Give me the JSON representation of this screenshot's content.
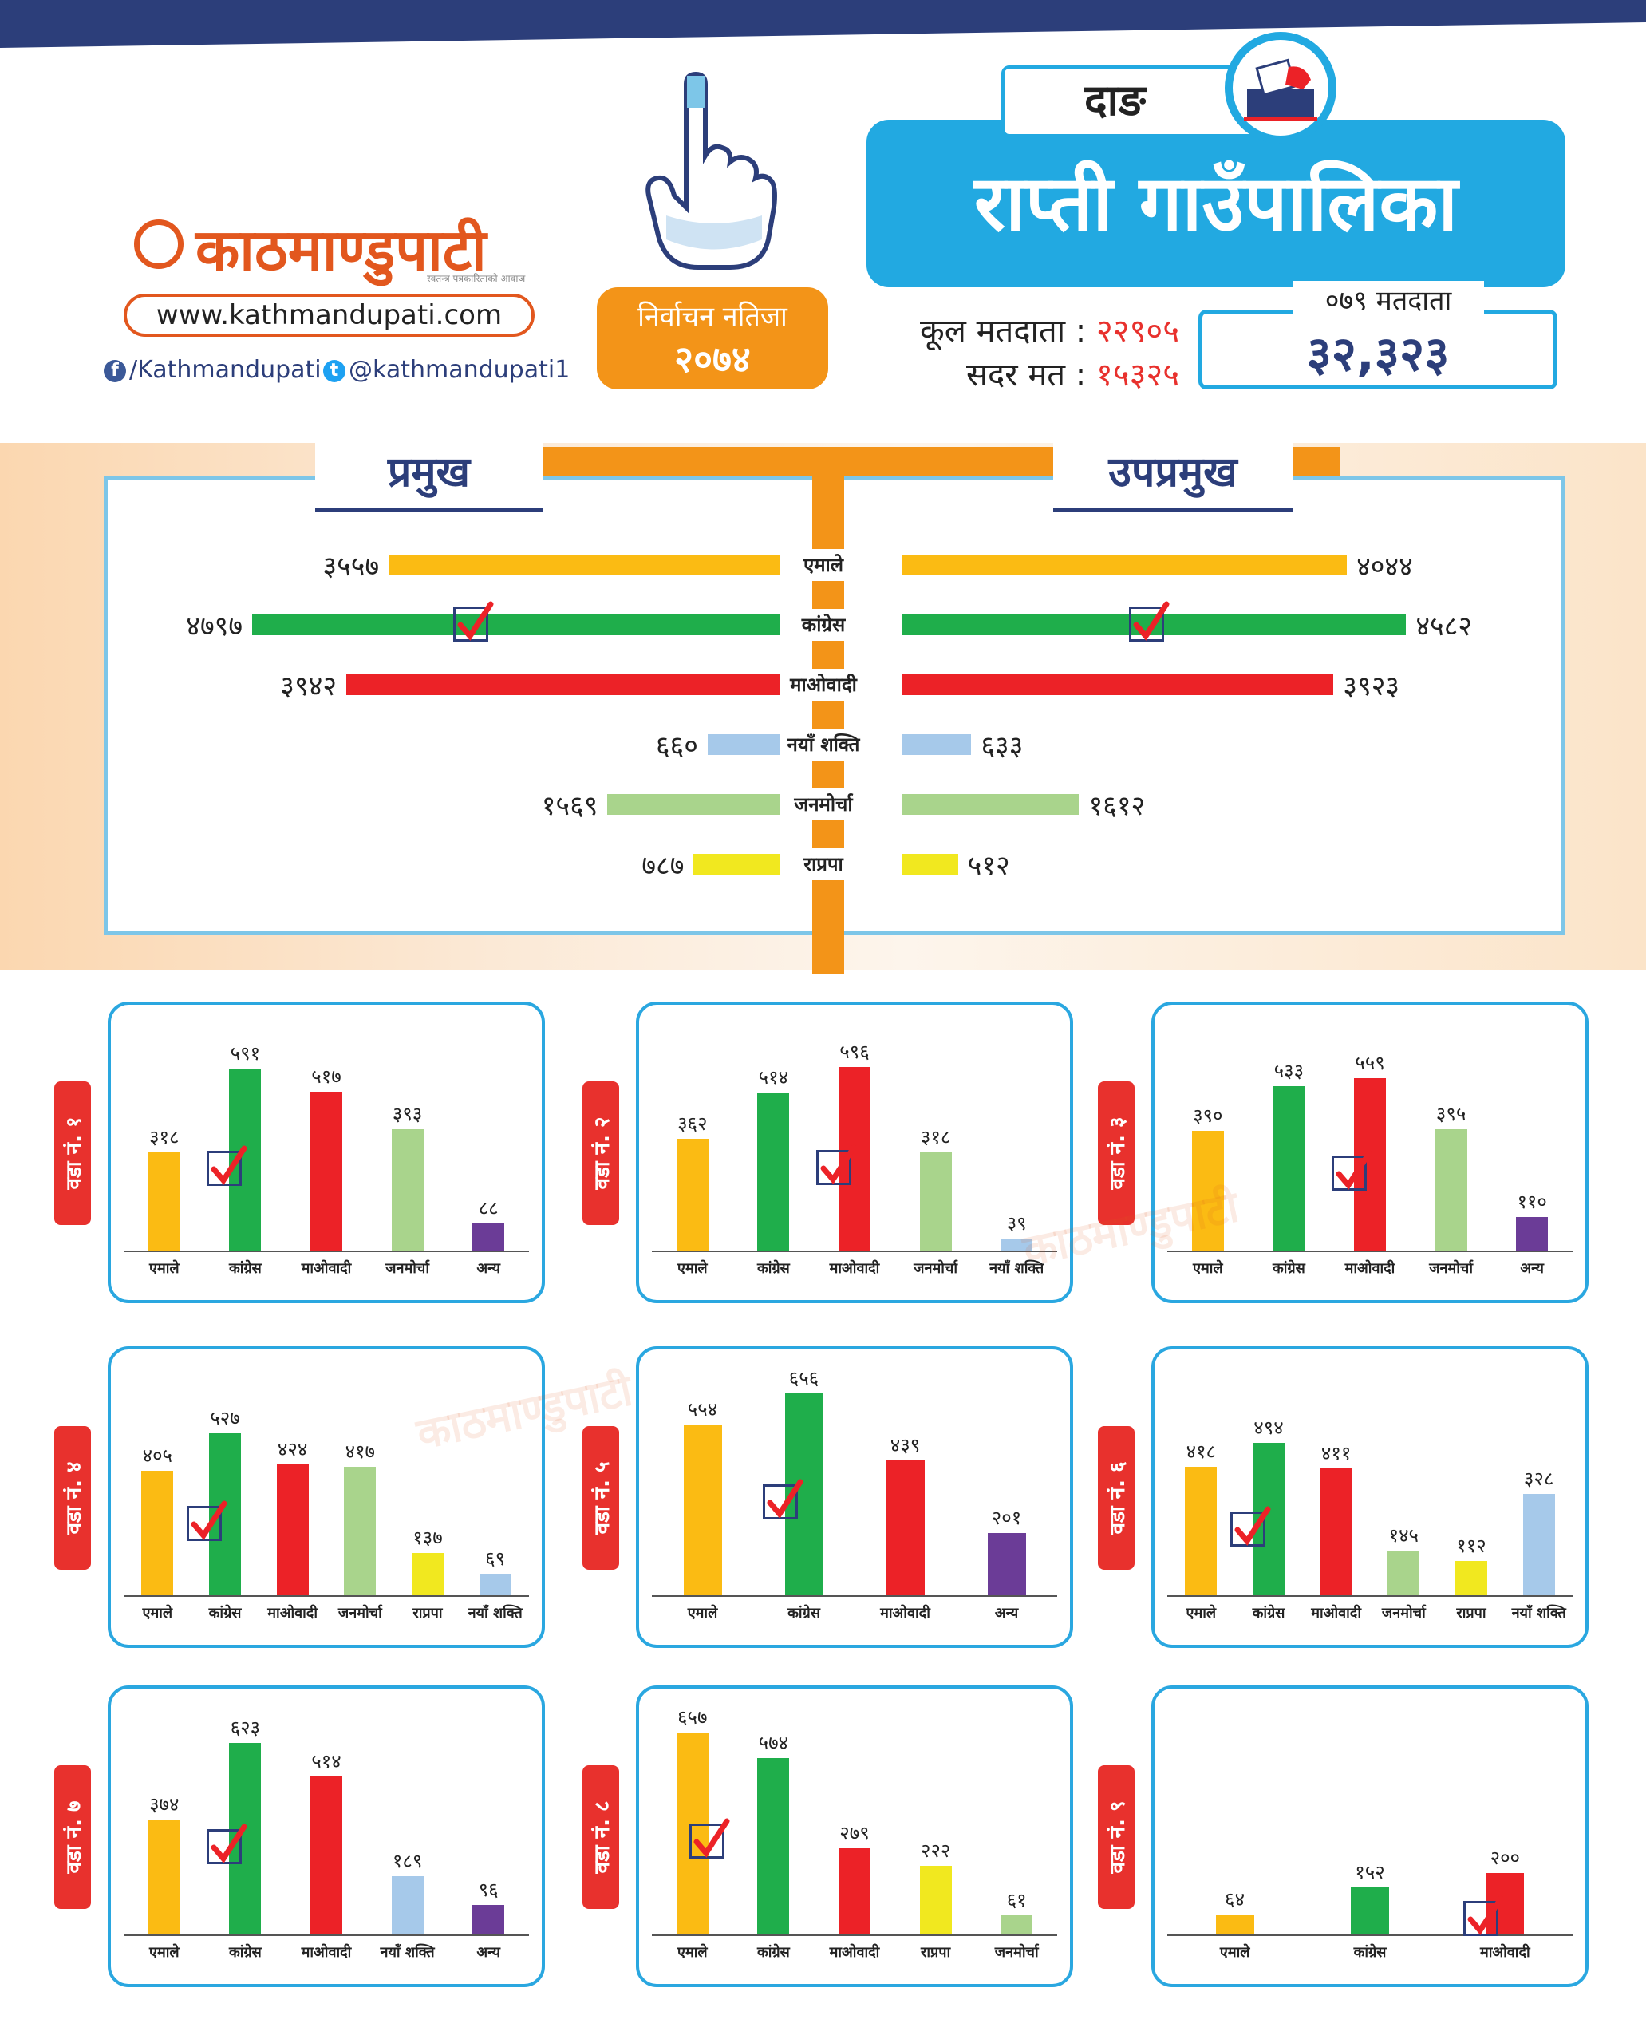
{
  "brand": {
    "name": "काठमाण्डुपाटी",
    "tagline": "स्वतन्त्र पत्रकारिताको आवाज",
    "url": "www.kathmandupati.com",
    "facebook": "/Kathmandupati",
    "twitter": "@kathmandupati1"
  },
  "badge": {
    "line1": "निर्वाचन नतिजा",
    "line2": "२०७४"
  },
  "header": {
    "district": "दाङ",
    "municipality": "राप्ती गाउँपालिका",
    "total_voters_label": "कूल मतदाता",
    "total_voters_value": "२२९०५",
    "valid_votes_label": "सदर मत",
    "valid_votes_value": "१५३२५",
    "voters_079_label": "०७९ मतदाता",
    "voters_079_value": "३२,३२३"
  },
  "colors": {
    "एमाले": "#fbbb13",
    "कांग्रेस": "#1fae4b",
    "माओवादी": "#ec2227",
    "नयाँ शक्ति": "#a6c9ea",
    "जनमोर्चा": "#a9d48c",
    "राप्रपा": "#f1e81f",
    "अन्य": "#6b3c97",
    "accent_orange": "#f39418",
    "accent_blue": "#22a9e1",
    "navy": "#2c3e7a"
  },
  "chart_data": [
    {
      "type": "bar",
      "title": "",
      "categories": [
        "एमाले",
        "कांग्रेस",
        "माओवादी",
        "नयाँ शक्ति",
        "जनमोर्चा",
        "राप्रपा"
      ],
      "series": [
        {
          "name": "प्रमुख",
          "values": [
            3557,
            4797,
            3942,
            660,
            1569,
            787
          ],
          "labels": [
            "३५५७",
            "४७९७",
            "३९४२",
            "६६०",
            "१५६९",
            "७८७"
          ],
          "winner": "कांग्रेस"
        },
        {
          "name": "उपप्रमुख",
          "values": [
            4044,
            4582,
            3923,
            633,
            1612,
            512
          ],
          "labels": [
            "४०४४",
            "४५८२",
            "३९२३",
            "६३३",
            "१६१२",
            "५१२"
          ],
          "winner": "कांग्रेस"
        }
      ]
    },
    {
      "type": "bar",
      "title": "वडा नं. १",
      "categories": [
        "एमाले",
        "कांग्रेस",
        "माओवादी",
        "जनमोर्चा",
        "अन्य"
      ],
      "values": [
        318,
        591,
        517,
        393,
        88
      ],
      "labels": [
        "३१८",
        "५९१",
        "५१७",
        "३९३",
        "८८"
      ],
      "winner": "कांग्रेस"
    },
    {
      "type": "bar",
      "title": "वडा नं. २",
      "categories": [
        "एमाले",
        "कांग्रेस",
        "माओवादी",
        "जनमोर्चा",
        "नयाँ शक्ति"
      ],
      "values": [
        362,
        514,
        596,
        318,
        39
      ],
      "labels": [
        "३६२",
        "५१४",
        "५९६",
        "३१८",
        "३९"
      ],
      "winner": "माओवादी"
    },
    {
      "type": "bar",
      "title": "वडा नं. ३",
      "categories": [
        "एमाले",
        "कांग्रेस",
        "माओवादी",
        "जनमोर्चा",
        "अन्य"
      ],
      "values": [
        390,
        533,
        559,
        395,
        110
      ],
      "labels": [
        "३९०",
        "५३३",
        "५५९",
        "३९५",
        "११०"
      ],
      "winner": "माओवादी"
    },
    {
      "type": "bar",
      "title": "वडा नं. ४",
      "categories": [
        "एमाले",
        "कांग्रेस",
        "माओवादी",
        "जनमोर्चा",
        "राप्रपा",
        "नयाँ शक्ति"
      ],
      "values": [
        405,
        527,
        424,
        417,
        137,
        69
      ],
      "labels": [
        "४०५",
        "५२७",
        "४२४",
        "४१७",
        "१३७",
        "६९"
      ],
      "winner": "कांग्रेस"
    },
    {
      "type": "bar",
      "title": "वडा नं. ५",
      "categories": [
        "एमाले",
        "कांग्रेस",
        "माओवादी",
        "अन्य"
      ],
      "values": [
        554,
        656,
        439,
        201
      ],
      "labels": [
        "५५४",
        "६५६",
        "४३९",
        "२०१"
      ],
      "winner": "कांग्रेस"
    },
    {
      "type": "bar",
      "title": "वडा नं. ६",
      "categories": [
        "एमाले",
        "कांग्रेस",
        "माओवादी",
        "जनमोर्चा",
        "राप्रपा",
        "नयाँ शक्ति"
      ],
      "values": [
        418,
        494,
        411,
        145,
        112,
        328
      ],
      "labels": [
        "४१८",
        "४९४",
        "४११",
        "१४५",
        "११२",
        "३२८"
      ],
      "winner": "कांग्रेस"
    },
    {
      "type": "bar",
      "title": "वडा नं. ७",
      "categories": [
        "एमाले",
        "कांग्रेस",
        "माओवादी",
        "नयाँ शक्ति",
        "अन्य"
      ],
      "values": [
        374,
        623,
        514,
        189,
        96
      ],
      "labels": [
        "३७४",
        "६२३",
        "५१४",
        "१८९",
        "९६"
      ],
      "winner": "कांग्रेस"
    },
    {
      "type": "bar",
      "title": "वडा नं. ८",
      "categories": [
        "एमाले",
        "कांग्रेस",
        "माओवादी",
        "राप्रपा",
        "जनमोर्चा"
      ],
      "values": [
        657,
        574,
        279,
        222,
        61
      ],
      "labels": [
        "६५७",
        "५७४",
        "२७९",
        "२२२",
        "६१"
      ],
      "winner": "एमाले"
    },
    {
      "type": "bar",
      "title": "वडा नं. ९",
      "categories": [
        "एमाले",
        "कांग्रेस",
        "माओवादी"
      ],
      "values": [
        64,
        152,
        200
      ],
      "labels": [
        "६४",
        "१५२",
        "२००"
      ],
      "winner": "माओवादी"
    }
  ]
}
